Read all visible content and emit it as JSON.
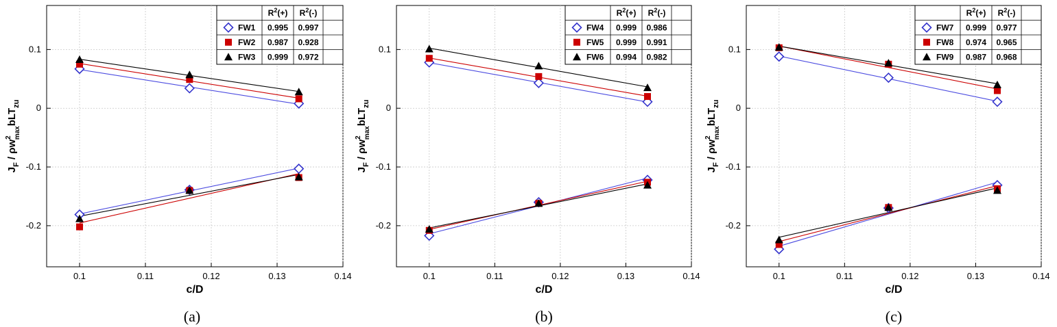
{
  "chart_data": [
    {
      "type": "scatter",
      "caption": "(a)",
      "xlabel": "c/D",
      "ylabel": "J_F / ρw²_max bLT_zu",
      "xlim": [
        0.095,
        0.14
      ],
      "ylim": [
        -0.27,
        0.175
      ],
      "xticks": [
        "0.1",
        "0.11",
        "0.12",
        "0.13",
        "0.14"
      ],
      "yticks": [
        "0.1",
        "0",
        "-0.1",
        "-0.2"
      ],
      "legend_headers": [
        "R²(+)",
        "R²(-)"
      ],
      "x": [
        0.1,
        0.1167,
        0.1333
      ],
      "series": [
        {
          "name": "FW1",
          "color": "#3333cc",
          "marker": "diamond",
          "r2_pos": "0.995",
          "r2_neg": "0.997",
          "pos": [
            0.067,
            0.034,
            0.008
          ],
          "neg": [
            -0.181,
            -0.139,
            -0.103
          ]
        },
        {
          "name": "FW2",
          "color": "#cc0000",
          "marker": "square",
          "r2_pos": "0.987",
          "r2_neg": "0.928",
          "pos": [
            0.075,
            0.049,
            0.016
          ],
          "neg": [
            -0.202,
            -0.14,
            -0.118
          ]
        },
        {
          "name": "FW3",
          "color": "#000000",
          "marker": "triangle",
          "r2_pos": "0.999",
          "r2_neg": "0.972",
          "pos": [
            0.083,
            0.057,
            0.028
          ],
          "neg": [
            -0.188,
            -0.14,
            -0.117
          ]
        }
      ]
    },
    {
      "type": "scatter",
      "caption": "(b)",
      "xlabel": "c/D",
      "ylabel": "J_F / ρw²_max bLT_zu",
      "xlim": [
        0.095,
        0.14
      ],
      "ylim": [
        -0.27,
        0.175
      ],
      "xticks": [
        "0.1",
        "0.11",
        "0.12",
        "0.13",
        "0.14"
      ],
      "yticks": [
        "0.1",
        "0",
        "-0.1",
        "-0.2"
      ],
      "legend_headers": [
        "R²(+)",
        "R²(-)"
      ],
      "x": [
        0.1,
        0.1167,
        0.1333
      ],
      "series": [
        {
          "name": "FW4",
          "color": "#3333cc",
          "marker": "diamond",
          "r2_pos": "0.999",
          "r2_neg": "0.986",
          "pos": [
            0.078,
            0.043,
            0.011
          ],
          "neg": [
            -0.217,
            -0.16,
            -0.122
          ]
        },
        {
          "name": "FW5",
          "color": "#cc0000",
          "marker": "square",
          "r2_pos": "0.999",
          "r2_neg": "0.991",
          "pos": [
            0.085,
            0.054,
            0.02
          ],
          "neg": [
            -0.208,
            -0.162,
            -0.126
          ]
        },
        {
          "name": "FW6",
          "color": "#000000",
          "marker": "triangle",
          "r2_pos": "0.994",
          "r2_neg": "0.982",
          "pos": [
            0.101,
            0.072,
            0.035
          ],
          "neg": [
            -0.206,
            -0.162,
            -0.131
          ]
        }
      ]
    },
    {
      "type": "scatter",
      "caption": "(c)",
      "xlabel": "c/D",
      "ylabel": "J_F / ρw²_max bLT_zu",
      "xlim": [
        0.095,
        0.14
      ],
      "ylim": [
        -0.27,
        0.175
      ],
      "xticks": [
        "0.1",
        "0.11",
        "0.12",
        "0.13",
        "0.14"
      ],
      "yticks": [
        "0.1",
        "0",
        "-0.1",
        "-0.2"
      ],
      "legend_headers": [
        "R²(+)",
        "R²(-)"
      ],
      "x": [
        0.1,
        0.1167,
        0.1333
      ],
      "series": [
        {
          "name": "FW7",
          "color": "#3333cc",
          "marker": "diamond",
          "r2_pos": "0.999",
          "r2_neg": "0.977",
          "pos": [
            0.088,
            0.052,
            0.011
          ],
          "neg": [
            -0.24,
            -0.17,
            -0.131
          ]
        },
        {
          "name": "FW8",
          "color": "#cc0000",
          "marker": "square",
          "r2_pos": "0.974",
          "r2_neg": "0.965",
          "pos": [
            0.103,
            0.075,
            0.03
          ],
          "neg": [
            -0.232,
            -0.169,
            -0.137
          ]
        },
        {
          "name": "FW9",
          "color": "#000000",
          "marker": "triangle",
          "r2_pos": "0.987",
          "r2_neg": "0.968",
          "pos": [
            0.104,
            0.077,
            0.04
          ],
          "neg": [
            -0.224,
            -0.169,
            -0.14
          ]
        }
      ]
    }
  ]
}
